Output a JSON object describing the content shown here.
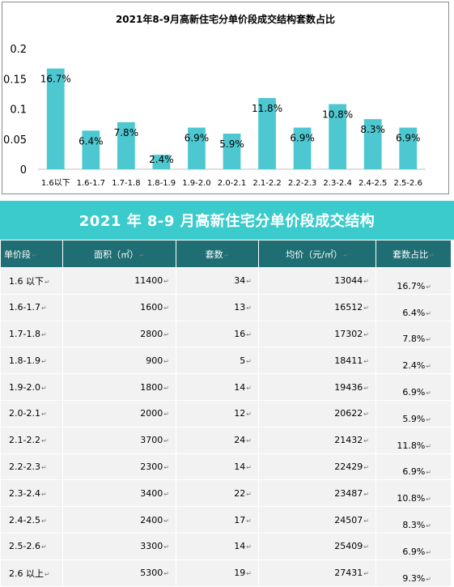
{
  "chart_data": {
    "type": "bar",
    "title": "2021年8-9月高新住宅分单价段成交结构套数占比",
    "categories": [
      "1.6以下",
      "1.6-1.7",
      "1.7-1.8",
      "1.8-1.9",
      "1.9-2.0",
      "2.0-2.1",
      "2.1-2.2",
      "2.2-2.3",
      "2.3-2.4",
      "2.4-2.5",
      "2.5-2.6"
    ],
    "values": [
      0.167,
      0.064,
      0.078,
      0.024,
      0.069,
      0.059,
      0.118,
      0.069,
      0.108,
      0.083,
      0.069
    ],
    "data_labels": [
      "16.7%",
      "6.4%",
      "7.8%",
      "2.4%",
      "6.9%",
      "5.9%",
      "11.8%",
      "6.9%",
      "10.8%",
      "8.3%",
      "6.9%"
    ],
    "yticks": [
      "0",
      "0.05",
      "0.1",
      "0.15",
      "0.2"
    ],
    "ylim": [
      0,
      0.2
    ],
    "grid": false,
    "bar_color": "#4ec8d0"
  },
  "table": {
    "title": "2021 年 8-9 月高新住宅分单价段成交结构",
    "headers": [
      "单价段",
      "面积（㎡）",
      "套数",
      "均价（元/㎡）",
      "套数占比"
    ],
    "rows": [
      [
        "1.6 以下",
        "11400",
        "34",
        "13044",
        "16.7%"
      ],
      [
        "1.6-1.7",
        "1600",
        "13",
        "16512",
        "6.4%"
      ],
      [
        "1.7-1.8",
        "2800",
        "16",
        "17302",
        "7.8%"
      ],
      [
        "1.8-1.9",
        "900",
        "5",
        "18411",
        "2.4%"
      ],
      [
        "1.9-2.0",
        "1800",
        "14",
        "19436",
        "6.9%"
      ],
      [
        "2.0-2.1",
        "2000",
        "12",
        "20622",
        "5.9%"
      ],
      [
        "2.1-2.2",
        "3700",
        "24",
        "21432",
        "11.8%"
      ],
      [
        "2.2-2.3",
        "2300",
        "14",
        "22429",
        "6.9%"
      ],
      [
        "2.3-2.4",
        "3400",
        "22",
        "23487",
        "10.8%"
      ],
      [
        "2.4-2.5",
        "2400",
        "17",
        "24507",
        "8.3%"
      ],
      [
        "2.5-2.6",
        "3300",
        "14",
        "25409",
        "6.9%"
      ],
      [
        "2.6 以上",
        "5300",
        "19",
        "27431",
        "9.3%"
      ]
    ]
  },
  "colors": {
    "banner": "#3ccbcc",
    "header": "#1f6e73",
    "cell": "#f2f2f2"
  }
}
